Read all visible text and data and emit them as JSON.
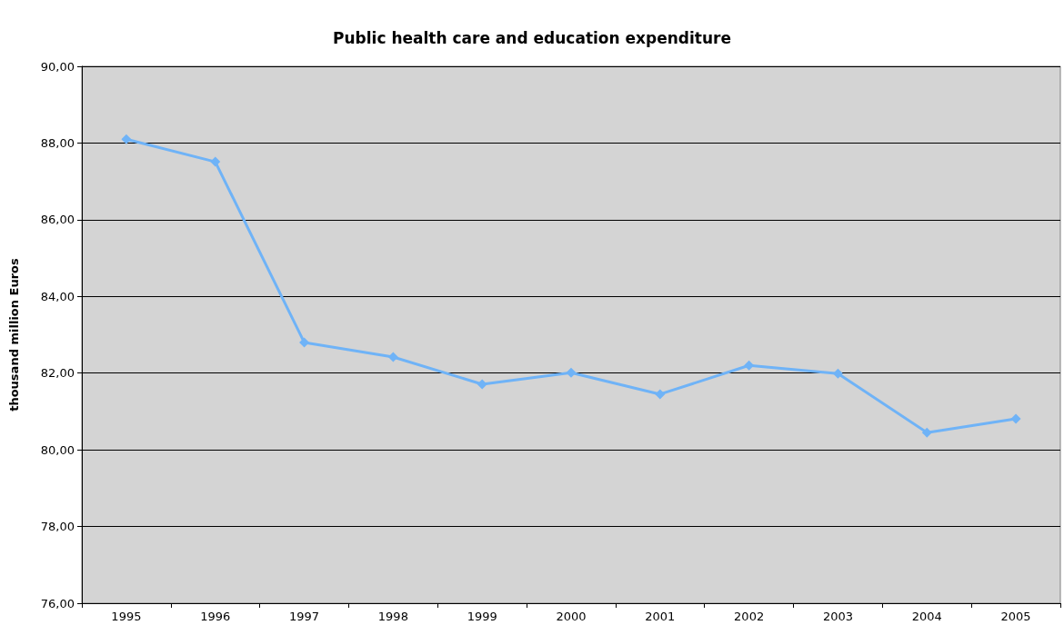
{
  "chart_data": {
    "type": "line",
    "title": "Public health care and education expenditure",
    "ylabel": "thousand million Euros",
    "categories": [
      "1995",
      "1996",
      "1997",
      "1998",
      "1999",
      "2000",
      "2001",
      "2002",
      "2003",
      "2004",
      "2005"
    ],
    "series": [
      {
        "color": "#6fb3f7",
        "values": [
          88.1,
          87.51,
          82.8,
          82.42,
          81.71,
          82.01,
          81.45,
          82.2,
          81.99,
          80.45,
          80.81
        ]
      }
    ],
    "ylim": [
      76,
      90
    ],
    "yticks": [
      {
        "value": 76,
        "label": "76,00"
      },
      {
        "value": 78,
        "label": "78,00"
      },
      {
        "value": 80,
        "label": "80,00"
      },
      {
        "value": 82,
        "label": "82,00"
      },
      {
        "value": 84,
        "label": "84,00"
      },
      {
        "value": 86,
        "label": "86,00"
      },
      {
        "value": 88,
        "label": "88,00"
      },
      {
        "value": 90,
        "label": "90,00"
      }
    ],
    "grid": "y",
    "marker": "diamond",
    "line_style": "solid"
  }
}
